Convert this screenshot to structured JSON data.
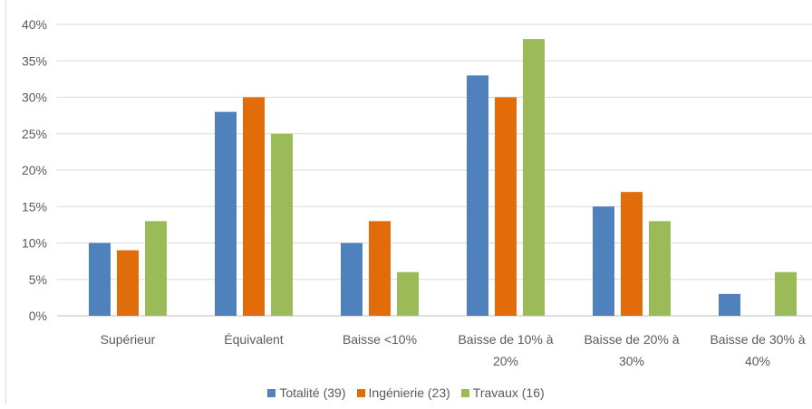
{
  "chart_data": {
    "type": "bar",
    "categories": [
      [
        "Supérieur"
      ],
      [
        "Équivalent"
      ],
      [
        "Baisse <10%"
      ],
      [
        "Baisse de 10% à",
        "20%"
      ],
      [
        "Baisse de 20% à",
        "30%"
      ],
      [
        "Baisse de 30% à",
        "40%"
      ]
    ],
    "series": [
      {
        "name": "Totalité (39)",
        "color": "#4f81bd",
        "values": [
          10,
          28,
          10,
          33,
          15,
          3
        ]
      },
      {
        "name": "Ingénierie (23)",
        "color": "#e36c0a",
        "values": [
          9,
          30,
          13,
          30,
          17,
          null
        ]
      },
      {
        "name": "Travaux (16)",
        "color": "#9bbb59",
        "values": [
          13,
          25,
          6,
          38,
          13,
          6
        ]
      }
    ],
    "yticks": [
      "0%",
      "5%",
      "10%",
      "15%",
      "20%",
      "25%",
      "30%",
      "35%",
      "40%"
    ],
    "ylim": [
      0,
      40
    ],
    "unit": "%",
    "grid": true,
    "legend_position": "bottom",
    "title": "",
    "xlabel": "",
    "ylabel": ""
  }
}
